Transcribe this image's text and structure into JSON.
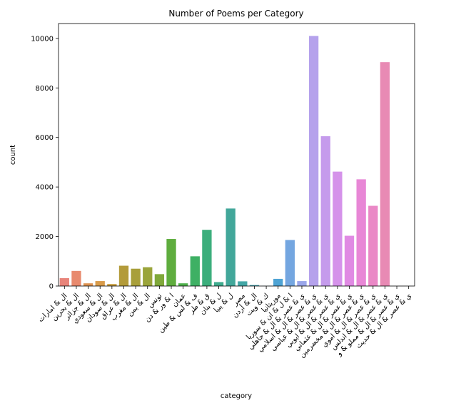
{
  "chart_data": {
    "type": "bar",
    "title": "Number of Poems per Category",
    "xlabel": "category",
    "ylabel": "count",
    "ylim": [
      0,
      10600
    ],
    "yticks": [
      0,
      2000,
      4000,
      6000,
      8000,
      10000
    ],
    "ytick_labels": [
      "0",
      "2000",
      "4000",
      "6000",
      "8000",
      "10000"
    ],
    "grid": false,
    "categories": [
      "ال & امارات",
      "ال & بحرين",
      "ال & جزائر",
      "ال & سعودي",
      "ال & سودان",
      "ال & عراق",
      "ال & مغرب",
      "ال & يمن",
      "تونس",
      "ا & ور & دن",
      "عمان",
      "ف & لس & طين",
      "ق & طر",
      "ل & بنان",
      "ل & يبيا",
      "مصر",
      "ال & أردن",
      "ك & ويت",
      "موريتانيا",
      "ا & ل & ان & سوريا",
      "ي & عصر & ال & جاهلي",
      "ي & عصر & ال & اسلامي",
      "ي & عصر & ال & عباسي",
      "ي & عصر & ال & ايوبي",
      "ي & عصر & ال & عثماني",
      "ي & عصر & ال & مخضرمين",
      "ي & عصر & ال & اموي",
      "ي & عصر & ال & اندلس",
      "ي & عصر & ال & مملو & و",
      "ي & عصر & ال & حديث"
    ],
    "values": [
      320,
      610,
      110,
      200,
      80,
      820,
      700,
      760,
      480,
      1900,
      110,
      1200,
      2270,
      160,
      3130,
      190,
      40,
      5,
      290,
      1860,
      200,
      10100,
      6050,
      4620,
      2030,
      4310,
      3240,
      9040,
      0,
      0
    ],
    "colors": [
      "#e8847a",
      "#e88a6e",
      "#dd9252",
      "#d89b4a",
      "#c49a3c",
      "#b39b3a",
      "#a89f3a",
      "#9aa43a",
      "#7fa83a",
      "#5fad3e",
      "#4fb04c",
      "#3eb064",
      "#3cae7c",
      "#3fab8e",
      "#42a79a",
      "#44a7a6",
      "#45a6b3",
      "#46a4c2",
      "#4ea3d4",
      "#74a6e0",
      "#9aa6ea",
      "#b5a2ec",
      "#c59bec",
      "#d592ea",
      "#e08ae3",
      "#e887d6",
      "#ea88c6",
      "#e88ab4",
      "#e88a9e",
      "#e8889a"
    ]
  }
}
